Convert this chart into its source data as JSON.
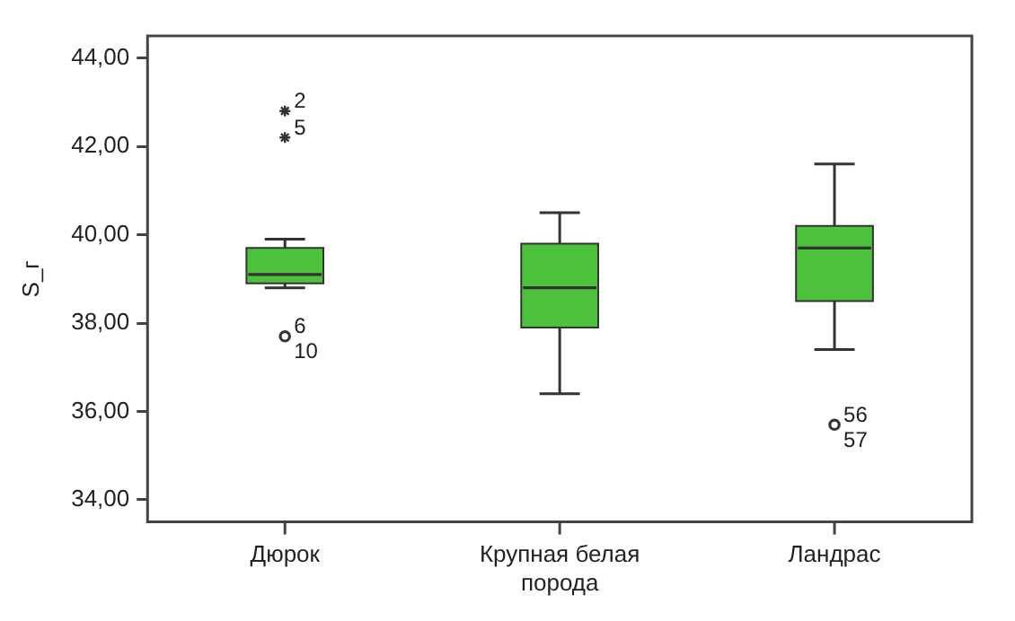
{
  "chart_data": {
    "type": "box",
    "ylabel": "S_г",
    "categories": [
      "Дюрок",
      "Крупная белая порода",
      "Ландрас"
    ],
    "ylim": [
      33.5,
      44.5
    ],
    "yticks": [
      {
        "value": 34,
        "label": "34,00"
      },
      {
        "value": 36,
        "label": "36,00"
      },
      {
        "value": 38,
        "label": "38,00"
      },
      {
        "value": 40,
        "label": "40,00"
      },
      {
        "value": 42,
        "label": "42,00"
      },
      {
        "value": 44,
        "label": "44,00"
      }
    ],
    "grid": false,
    "legend": false,
    "series": [
      {
        "color": "#4cc13c",
        "boxes": [
          {
            "low": 38.8,
            "q1": 38.9,
            "median": 39.1,
            "q3": 39.7,
            "high": 39.9
          },
          {
            "low": 36.4,
            "q1": 37.9,
            "median": 38.8,
            "q3": 39.8,
            "high": 40.5
          },
          {
            "low": 37.4,
            "q1": 38.5,
            "median": 39.7,
            "q3": 40.2,
            "high": 41.6
          }
        ]
      },
      {
        "type": "scatter",
        "marker": "cross",
        "color": "#333333",
        "x": [
          "Дюрок",
          "Дюрок"
        ],
        "values": [
          42.8,
          42.2
        ]
      },
      {
        "type": "scatter",
        "marker": "circle",
        "color": "#333333",
        "x": [
          "Дюрок",
          "Ландрас"
        ],
        "values": [
          37.7,
          35.7
        ]
      }
    ],
    "annotations": [
      {
        "text": "2",
        "x": "Дюрок",
        "y": 42.8
      },
      {
        "text": "5",
        "x": "Дюрок",
        "y": 42.2
      },
      {
        "text": "6",
        "x": "Дюрок",
        "y": 37.7
      },
      {
        "text": "10",
        "x": "Дюрок",
        "y": 37.7
      },
      {
        "text": "56",
        "x": "Ландрас",
        "y": 35.7
      },
      {
        "text": "57",
        "x": "Ландрас",
        "y": 35.7
      }
    ]
  }
}
